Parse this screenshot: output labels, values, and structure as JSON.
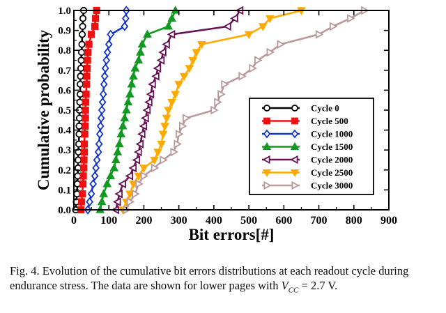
{
  "chart_data": {
    "type": "line",
    "title": "",
    "xlabel": "Bit errors[#]",
    "ylabel": "Cumulative probability",
    "xlim": [
      0,
      900
    ],
    "ylim": [
      0,
      1.0
    ],
    "xticks": [
      0,
      100,
      200,
      300,
      400,
      500,
      600,
      700,
      800,
      900
    ],
    "yticks": [
      0.0,
      0.1,
      0.2,
      0.3,
      0.4,
      0.5,
      0.6,
      0.7,
      0.8,
      0.9,
      1.0
    ],
    "grid": false,
    "legend_position": "lower-right",
    "series": [
      {
        "name": "Cycle 0",
        "color": "#000000",
        "marker": "circle-open",
        "points": [
          [
            5,
            0.0
          ],
          [
            7,
            0.04
          ],
          [
            9,
            0.08
          ],
          [
            10,
            0.13
          ],
          [
            11,
            0.17
          ],
          [
            12,
            0.21
          ],
          [
            12,
            0.25
          ],
          [
            13,
            0.29
          ],
          [
            14,
            0.33
          ],
          [
            15,
            0.38
          ],
          [
            15,
            0.42
          ],
          [
            16,
            0.46
          ],
          [
            16,
            0.5
          ],
          [
            17,
            0.54
          ],
          [
            18,
            0.58
          ],
          [
            18,
            0.63
          ],
          [
            19,
            0.67
          ],
          [
            20,
            0.71
          ],
          [
            21,
            0.75
          ],
          [
            22,
            0.79
          ],
          [
            23,
            0.83
          ],
          [
            24,
            0.88
          ],
          [
            25,
            0.92
          ],
          [
            26,
            0.96
          ],
          [
            28,
            1.0
          ]
        ]
      },
      {
        "name": "Cycle 500",
        "color": "#ee1111",
        "marker": "square",
        "points": [
          [
            20,
            0.0
          ],
          [
            22,
            0.04
          ],
          [
            24,
            0.08
          ],
          [
            26,
            0.13
          ],
          [
            27,
            0.17
          ],
          [
            28,
            0.21
          ],
          [
            29,
            0.25
          ],
          [
            30,
            0.29
          ],
          [
            30,
            0.33
          ],
          [
            31,
            0.38
          ],
          [
            32,
            0.42
          ],
          [
            33,
            0.46
          ],
          [
            33,
            0.5
          ],
          [
            34,
            0.54
          ],
          [
            35,
            0.58
          ],
          [
            36,
            0.63
          ],
          [
            37,
            0.67
          ],
          [
            38,
            0.71
          ],
          [
            39,
            0.75
          ],
          [
            40,
            0.79
          ],
          [
            43,
            0.83
          ],
          [
            50,
            0.88
          ],
          [
            60,
            0.92
          ],
          [
            62,
            0.96
          ],
          [
            65,
            1.0
          ]
        ]
      },
      {
        "name": "Cycle 1000",
        "color": "#1133cc",
        "marker": "diamond-open",
        "points": [
          [
            40,
            0.0
          ],
          [
            45,
            0.04
          ],
          [
            50,
            0.08
          ],
          [
            55,
            0.13
          ],
          [
            60,
            0.17
          ],
          [
            63,
            0.21
          ],
          [
            66,
            0.25
          ],
          [
            70,
            0.29
          ],
          [
            72,
            0.33
          ],
          [
            74,
            0.38
          ],
          [
            76,
            0.42
          ],
          [
            78,
            0.46
          ],
          [
            80,
            0.5
          ],
          [
            82,
            0.54
          ],
          [
            84,
            0.58
          ],
          [
            86,
            0.63
          ],
          [
            88,
            0.67
          ],
          [
            90,
            0.71
          ],
          [
            93,
            0.75
          ],
          [
            96,
            0.79
          ],
          [
            100,
            0.83
          ],
          [
            105,
            0.88
          ],
          [
            145,
            0.92
          ],
          [
            148,
            0.96
          ],
          [
            150,
            1.0
          ]
        ]
      },
      {
        "name": "Cycle 1500",
        "color": "#119922",
        "marker": "triangle-up",
        "points": [
          [
            75,
            0.0
          ],
          [
            80,
            0.04
          ],
          [
            85,
            0.08
          ],
          [
            95,
            0.13
          ],
          [
            105,
            0.17
          ],
          [
            115,
            0.21
          ],
          [
            120,
            0.25
          ],
          [
            125,
            0.29
          ],
          [
            130,
            0.33
          ],
          [
            135,
            0.38
          ],
          [
            140,
            0.42
          ],
          [
            145,
            0.46
          ],
          [
            150,
            0.5
          ],
          [
            155,
            0.54
          ],
          [
            160,
            0.58
          ],
          [
            165,
            0.63
          ],
          [
            170,
            0.67
          ],
          [
            175,
            0.71
          ],
          [
            185,
            0.75
          ],
          [
            190,
            0.79
          ],
          [
            195,
            0.83
          ],
          [
            210,
            0.88
          ],
          [
            270,
            0.92
          ],
          [
            280,
            0.96
          ],
          [
            290,
            1.0
          ]
        ]
      },
      {
        "name": "Cycle 2000",
        "color": "#661155",
        "marker": "triangle-left-open",
        "points": [
          [
            120,
            0.0
          ],
          [
            125,
            0.04
          ],
          [
            130,
            0.08
          ],
          [
            140,
            0.13
          ],
          [
            160,
            0.17
          ],
          [
            170,
            0.21
          ],
          [
            180,
            0.25
          ],
          [
            185,
            0.29
          ],
          [
            190,
            0.33
          ],
          [
            195,
            0.38
          ],
          [
            200,
            0.42
          ],
          [
            205,
            0.46
          ],
          [
            210,
            0.5
          ],
          [
            215,
            0.54
          ],
          [
            220,
            0.58
          ],
          [
            225,
            0.63
          ],
          [
            235,
            0.67
          ],
          [
            240,
            0.71
          ],
          [
            250,
            0.75
          ],
          [
            255,
            0.79
          ],
          [
            265,
            0.83
          ],
          [
            280,
            0.88
          ],
          [
            440,
            0.92
          ],
          [
            460,
            0.96
          ],
          [
            475,
            1.0
          ]
        ]
      },
      {
        "name": "Cycle 2500",
        "color": "#ffaa00",
        "marker": "triangle-down",
        "points": [
          [
            140,
            0.0
          ],
          [
            150,
            0.04
          ],
          [
            160,
            0.08
          ],
          [
            170,
            0.13
          ],
          [
            185,
            0.17
          ],
          [
            200,
            0.21
          ],
          [
            230,
            0.25
          ],
          [
            240,
            0.29
          ],
          [
            250,
            0.33
          ],
          [
            255,
            0.38
          ],
          [
            260,
            0.42
          ],
          [
            265,
            0.46
          ],
          [
            270,
            0.5
          ],
          [
            280,
            0.54
          ],
          [
            290,
            0.58
          ],
          [
            300,
            0.63
          ],
          [
            315,
            0.67
          ],
          [
            330,
            0.71
          ],
          [
            340,
            0.75
          ],
          [
            350,
            0.79
          ],
          [
            365,
            0.83
          ],
          [
            500,
            0.88
          ],
          [
            540,
            0.92
          ],
          [
            560,
            0.96
          ],
          [
            650,
            1.0
          ]
        ]
      },
      {
        "name": "Cycle 3000",
        "color": "#b99999",
        "marker": "triangle-right-open",
        "points": [
          [
            150,
            0.0
          ],
          [
            160,
            0.04
          ],
          [
            175,
            0.08
          ],
          [
            185,
            0.13
          ],
          [
            200,
            0.17
          ],
          [
            230,
            0.21
          ],
          [
            255,
            0.25
          ],
          [
            285,
            0.29
          ],
          [
            295,
            0.33
          ],
          [
            300,
            0.38
          ],
          [
            310,
            0.42
          ],
          [
            320,
            0.46
          ],
          [
            400,
            0.5
          ],
          [
            410,
            0.54
          ],
          [
            420,
            0.58
          ],
          [
            430,
            0.63
          ],
          [
            480,
            0.67
          ],
          [
            510,
            0.71
          ],
          [
            525,
            0.75
          ],
          [
            560,
            0.79
          ],
          [
            590,
            0.83
          ],
          [
            700,
            0.88
          ],
          [
            740,
            0.92
          ],
          [
            790,
            0.96
          ],
          [
            830,
            1.0
          ]
        ]
      }
    ]
  },
  "caption": {
    "text": "Fig. 4.  Evolution of the cumulative bit errors distributions at each readout cycle during endurance stress. The data are shown for lower pages with ",
    "vcc_main": "V",
    "vcc_sub": "CC",
    "tail": " = 2.7 V."
  }
}
